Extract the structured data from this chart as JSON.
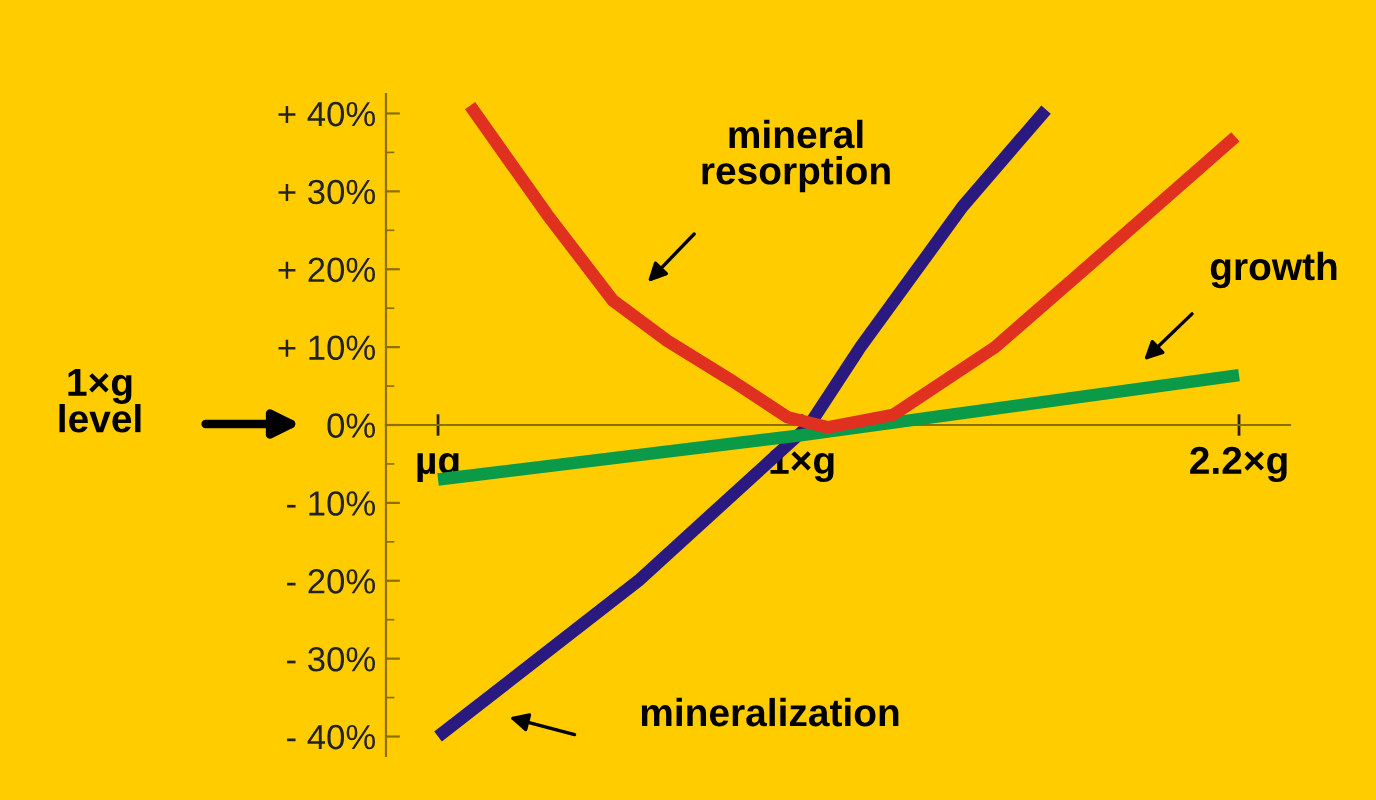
{
  "chart_data": {
    "type": "line",
    "xlim": [
      -0.143,
      2.34
    ],
    "ylim": [
      -42.5,
      42.5
    ],
    "xticks": [
      {
        "value": 0,
        "label": "µg"
      },
      {
        "value": 1,
        "label": "1×g"
      },
      {
        "value": 2.2,
        "label": "2.2×g"
      }
    ],
    "yticks": [
      {
        "value": -40,
        "label": "- 40%"
      },
      {
        "value": -30,
        "label": "- 30%"
      },
      {
        "value": -20,
        "label": "- 20%"
      },
      {
        "value": -10,
        "label": "- 10%"
      },
      {
        "value": 0,
        "label": "0%"
      },
      {
        "value": 10,
        "label": "+ 10%"
      },
      {
        "value": 20,
        "label": "+ 20%"
      },
      {
        "value": 30,
        "label": "+ 30%"
      },
      {
        "value": 40,
        "label": "+ 40%"
      }
    ],
    "grid": false,
    "marker": "none",
    "line_style": "solid",
    "series": [
      {
        "color": "#2a1a80",
        "x": [
          0,
          0.55,
          1.02,
          1.16,
          1.44,
          1.67
        ],
        "values": [
          -40,
          -20,
          0,
          10,
          28,
          40.5
        ]
      },
      {
        "color": "#0a9a48",
        "x": [
          0,
          1.0,
          2.2
        ],
        "values": [
          -7,
          -1.3,
          6.4
        ]
      },
      {
        "color": "#e03020",
        "x": [
          0.088,
          0.3,
          0.48,
          0.63,
          0.81,
          0.96,
          1.07,
          1.25,
          1.53,
          1.8,
          2.19
        ],
        "values": [
          41,
          27,
          16,
          10.8,
          5.6,
          1,
          -0.3,
          1.3,
          10,
          21,
          37
        ]
      }
    ],
    "annotations": [
      "mineral\nresorption",
      "growth",
      "mineralization",
      "1×g\nlevel"
    ]
  }
}
